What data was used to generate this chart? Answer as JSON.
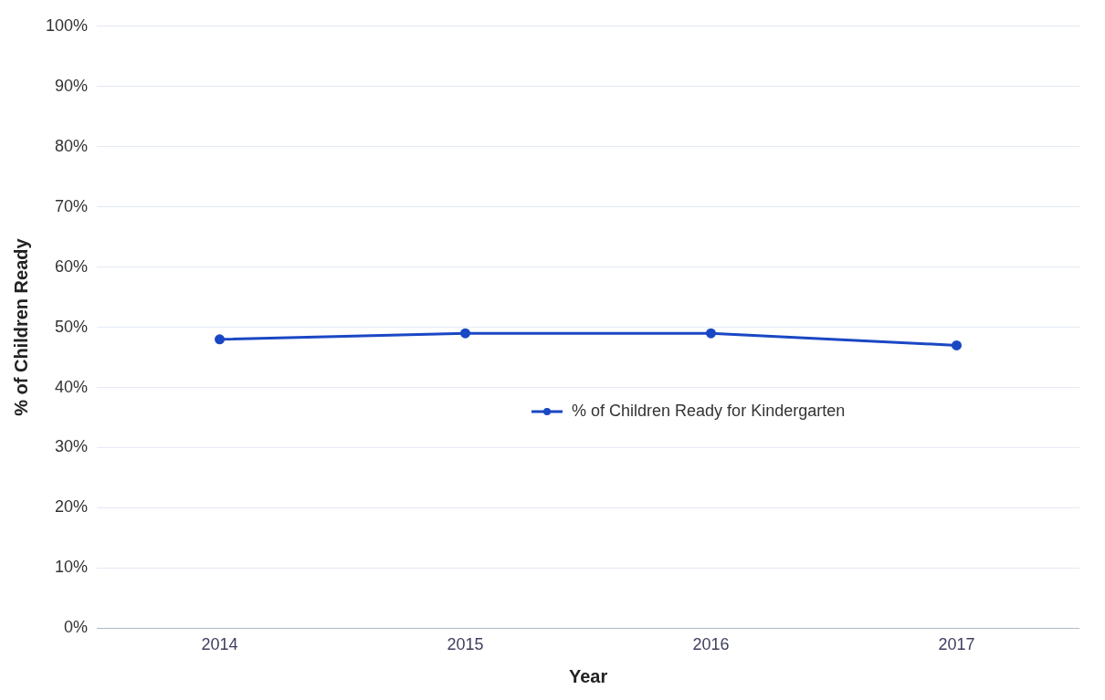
{
  "chart_data": {
    "type": "line",
    "xlabel": "Year",
    "ylabel": "% of Children Ready",
    "categories": [
      "2014",
      "2015",
      "2016",
      "2017"
    ],
    "series": [
      {
        "name": "% of Children Ready for Kindergarten",
        "color": "#1a47c4",
        "values": [
          48,
          49,
          49,
          47
        ]
      }
    ],
    "ylim": [
      0,
      100
    ],
    "yticks": [
      {
        "value": 0,
        "label": "0%"
      },
      {
        "value": 10,
        "label": "10%"
      },
      {
        "value": 20,
        "label": "20%"
      },
      {
        "value": 30,
        "label": "30%"
      },
      {
        "value": 40,
        "label": "40%"
      },
      {
        "value": 50,
        "label": "50%"
      },
      {
        "value": 60,
        "label": "60%"
      },
      {
        "value": 70,
        "label": "70%"
      },
      {
        "value": 80,
        "label": "80%"
      },
      {
        "value": 90,
        "label": "90%"
      },
      {
        "value": 100,
        "label": "100%"
      }
    ],
    "grid": "y",
    "legend": "center",
    "marker": "circle",
    "line_style": "solid"
  }
}
